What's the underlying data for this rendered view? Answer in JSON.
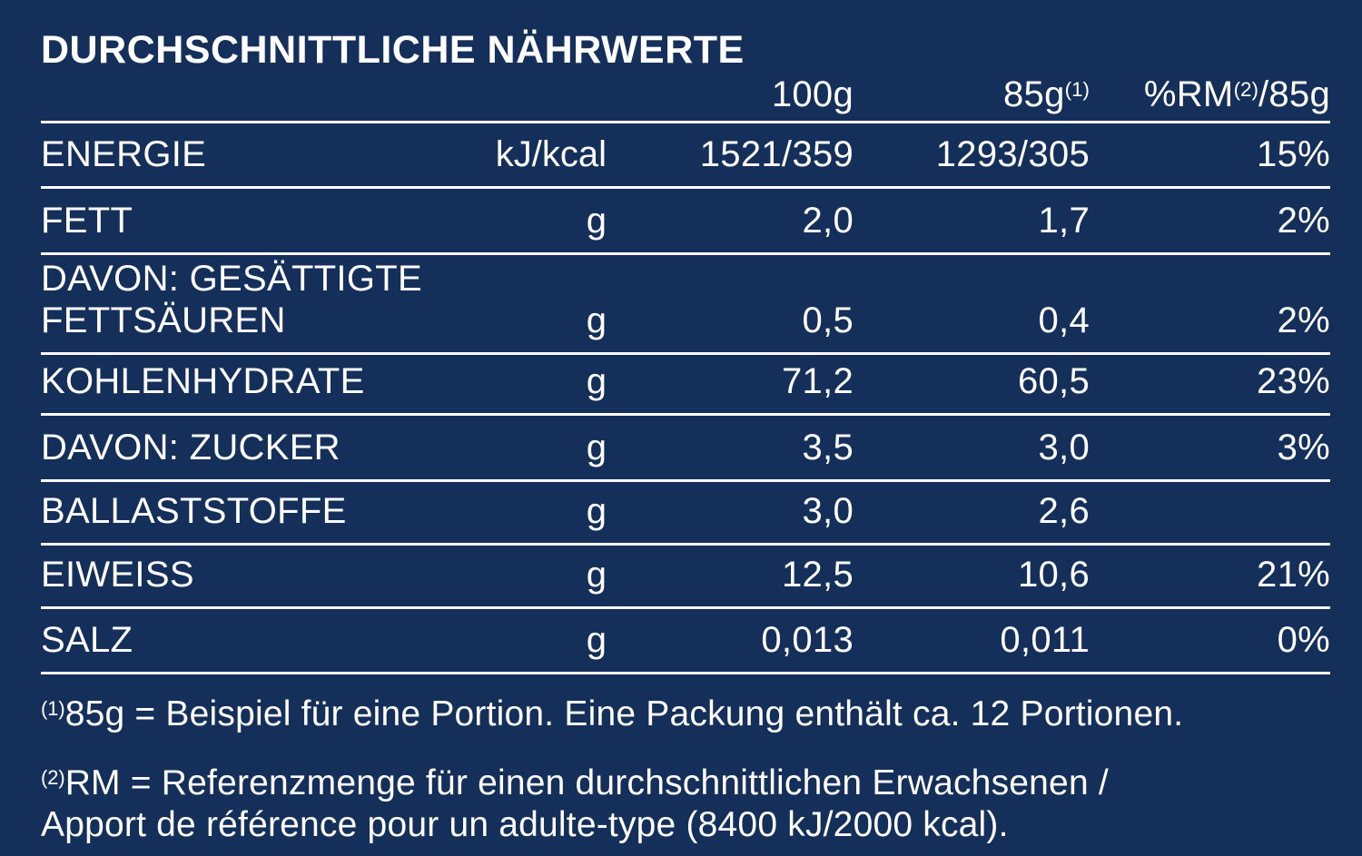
{
  "colors": {
    "background": "#14305A",
    "text": "#FFFFFF",
    "rule_lines": "#FFFFFF"
  },
  "title": "DURCHSCHNITTLICHE NÄHRWERTE",
  "table": {
    "header": {
      "col_100g": "100g",
      "col_85g_base": "85g",
      "col_85g_sup": "(1)",
      "col_rm_pre": "%RM",
      "col_rm_sup": "(2)",
      "col_rm_post": "/85g"
    },
    "rows": [
      {
        "label": "ENERGIE",
        "unit": "kJ/kcal",
        "per_100g": "1521/359",
        "per_85g": "1293/305",
        "rm_percent": "15%"
      },
      {
        "label": "FETT",
        "unit": "g",
        "per_100g": "2,0",
        "per_85g": "1,7",
        "rm_percent": "2%"
      },
      {
        "label": "DAVON: GESÄTTIGTE FETTSÄUREN",
        "unit": "g",
        "per_100g": "0,5",
        "per_85g": "0,4",
        "rm_percent": "2%"
      },
      {
        "label": "KOHLENHYDRATE",
        "unit": "g",
        "per_100g": "71,2",
        "per_85g": "60,5",
        "rm_percent": "23%"
      },
      {
        "label": "DAVON: ZUCKER",
        "unit": "g",
        "per_100g": "3,5",
        "per_85g": "3,0",
        "rm_percent": "3%"
      },
      {
        "label": "BALLASTSTOFFE",
        "unit": "g",
        "per_100g": "3,0",
        "per_85g": "2,6",
        "rm_percent": ""
      },
      {
        "label": "EIWEISS",
        "unit": "g",
        "per_100g": "12,5",
        "per_85g": "10,6",
        "rm_percent": "21%"
      },
      {
        "label": "SALZ",
        "unit": "g",
        "per_100g": "0,013",
        "per_85g": "0,011",
        "rm_percent": "0%"
      }
    ]
  },
  "footnotes": {
    "fn1": {
      "sup": "(1)",
      "text": "85g = Beispiel für eine Portion. Eine Packung enthält ca. 12 Portionen."
    },
    "fn2": {
      "sup": "(2)",
      "line1": "RM = Referenzmenge für einen durchschnittlichen Erwachsenen /",
      "line2": "Apport de référence pour un adulte-type (8400 kJ/2000 kcal)."
    }
  }
}
